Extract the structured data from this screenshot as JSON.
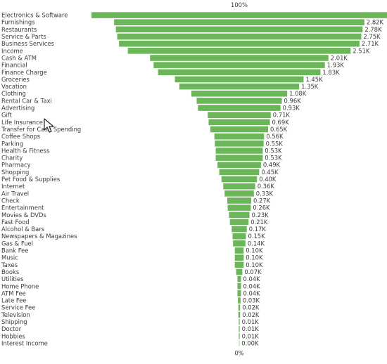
{
  "chart_data": {
    "type": "funnel",
    "top_axis_label": "100%",
    "bottom_axis_label": "0%",
    "bar_color": "#6ab659",
    "categories": [
      "Electronics & Software",
      "Furnishings",
      "Restaurants",
      "Service & Parts",
      "Business Services",
      "Income",
      "Cash & ATM",
      "Financial",
      "Finance Charge",
      "Groceries",
      "Vacation",
      "Clothing",
      "Rental Car & Taxi",
      "Advertising",
      "Gift",
      "Life Insurance",
      "Transfer for Cash Spending",
      "Coffee Shops",
      "Parking",
      "Health & Fitness",
      "Charity",
      "Pharmacy",
      "Shopping",
      "Pet Food & Supplies",
      "Internet",
      "Air Travel",
      "Check",
      "Entertainment",
      "Movies & DVDs",
      "Fast Food",
      "Alcohol & Bars",
      "Newspapers & Magazines",
      "Gas & Fuel",
      "Bank Fee",
      "Music",
      "Taxes",
      "Books",
      "Utilities",
      "Home Phone",
      "ATM Fee",
      "Late Fee",
      "Service Fee",
      "Television",
      "Shipping",
      "Doctor",
      "Hobbies",
      "Interest Income"
    ],
    "values": [
      3.33,
      2.82,
      2.78,
      2.75,
      2.71,
      2.51,
      2.01,
      1.93,
      1.83,
      1.45,
      1.35,
      1.08,
      0.96,
      0.93,
      0.71,
      0.69,
      0.65,
      0.56,
      0.55,
      0.53,
      0.53,
      0.49,
      0.45,
      0.4,
      0.36,
      0.33,
      0.27,
      0.26,
      0.23,
      0.21,
      0.17,
      0.15,
      0.14,
      0.1,
      0.1,
      0.1,
      0.07,
      0.04,
      0.04,
      0.04,
      0.03,
      0.02,
      0.02,
      0.01,
      0.01,
      0.01,
      0.0
    ],
    "value_labels": [
      "",
      "2.82K",
      "2.78K",
      "2.75K",
      "2.71K",
      "2.51K",
      "2.01K",
      "1.93K",
      "1.83K",
      "1.45K",
      "1.35K",
      "1.08K",
      "0.96K",
      "0.93K",
      "0.71K",
      "0.69K",
      "0.65K",
      "0.56K",
      "0.55K",
      "0.53K",
      "0.53K",
      "0.49K",
      "0.45K",
      "0.40K",
      "0.36K",
      "0.33K",
      "0.27K",
      "0.26K",
      "0.23K",
      "0.21K",
      "0.17K",
      "0.15K",
      "0.14K",
      "0.10K",
      "0.10K",
      "0.10K",
      "0.07K",
      "0.04K",
      "0.04K",
      "0.04K",
      "0.03K",
      "0.02K",
      "0.02K",
      "0.01K",
      "0.01K",
      "0.01K",
      "0.00K"
    ]
  }
}
